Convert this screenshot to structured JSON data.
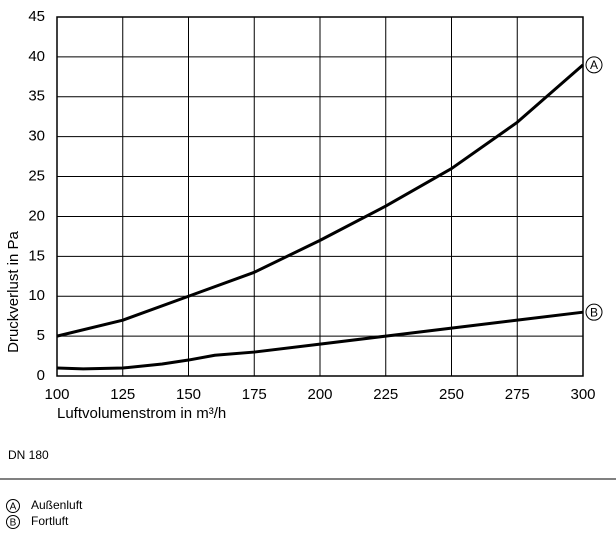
{
  "chart_data": {
    "type": "line",
    "ylabel": "Druckverlust in Pa",
    "xlabel": "Luftvolumenstrom in m³/h",
    "note": "DN 180",
    "xlim": [
      100,
      300
    ],
    "xticks": [
      100,
      125,
      150,
      175,
      200,
      225,
      250,
      275,
      300
    ],
    "ylim": [
      0,
      45
    ],
    "yticks": [
      0,
      5,
      10,
      15,
      20,
      25,
      30,
      35,
      40,
      45
    ],
    "grid": true,
    "series": [
      {
        "name": "Außenluft",
        "marker": "A",
        "color": "#000000",
        "x": [
          100,
          125,
          150,
          175,
          200,
          225,
          250,
          275,
          300
        ],
        "values": [
          5,
          7,
          10,
          13,
          17,
          21.3,
          26,
          31.8,
          39
        ]
      },
      {
        "name": "Fortluft",
        "marker": "B",
        "color": "#000000",
        "x": [
          100,
          110,
          125,
          140,
          150,
          160,
          175,
          200,
          225,
          250,
          275,
          300
        ],
        "values": [
          1,
          0.9,
          1,
          1.5,
          2,
          2.6,
          3,
          4,
          5,
          6,
          7,
          8
        ]
      }
    ]
  }
}
